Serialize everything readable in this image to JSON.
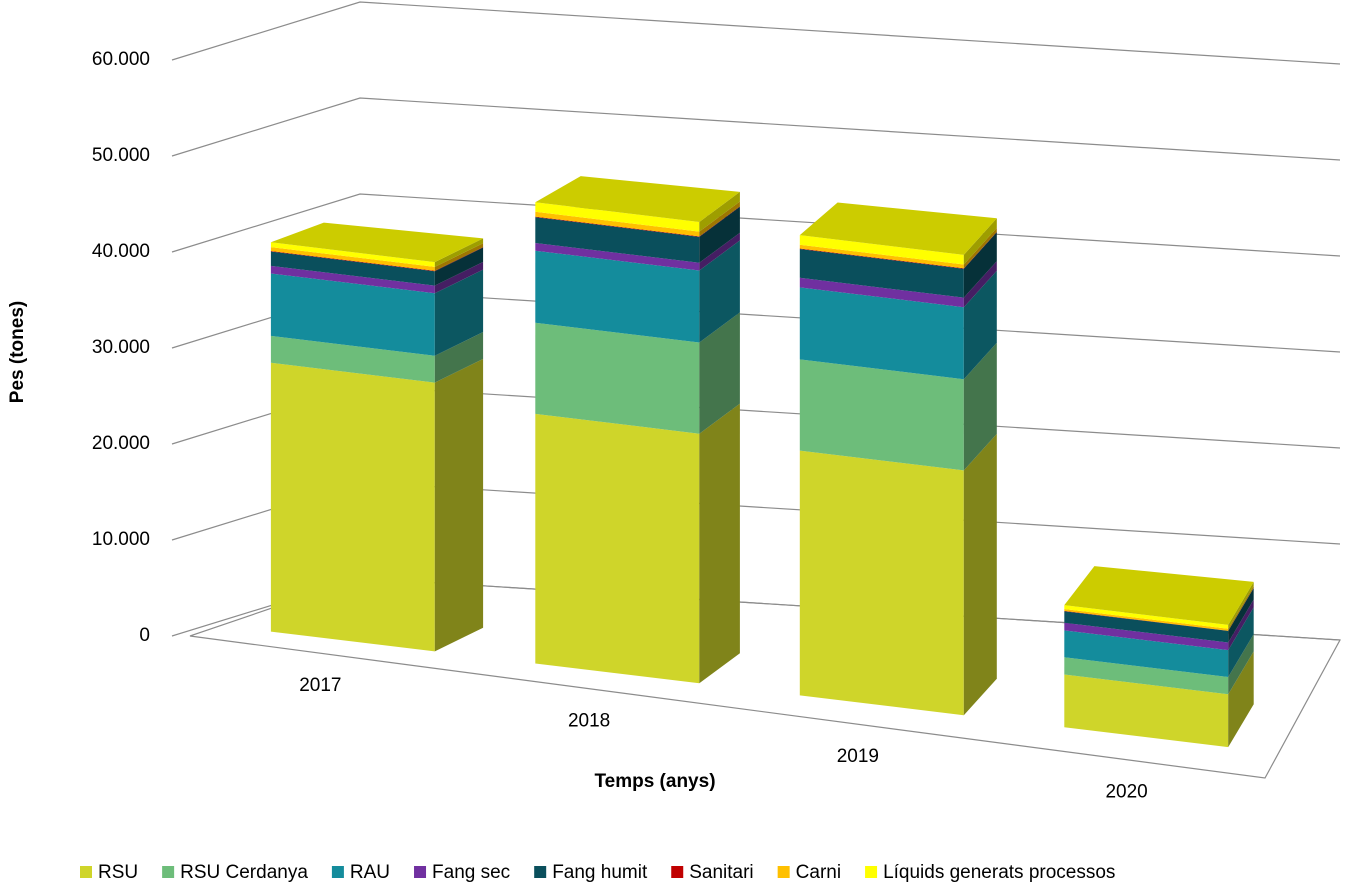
{
  "chart_data": {
    "type": "bar3d_stacked",
    "x_label": "Temps (anys)",
    "y_label": "Pes (tones)",
    "categories": [
      "2017",
      "2018",
      "2019",
      "2020"
    ],
    "series": [
      {
        "name": "RSU",
        "color": "#cfd52a",
        "values": [
          28000,
          26000,
          25500,
          5500
        ]
      },
      {
        "name": "RSU Cerdanya",
        "color": "#6dbd7a",
        "values": [
          2800,
          9500,
          9500,
          1800
        ]
      },
      {
        "name": "RAU",
        "color": "#148c9c",
        "values": [
          6500,
          7500,
          7500,
          2800
        ]
      },
      {
        "name": "Fang sec",
        "color": "#7030a0",
        "values": [
          800,
          800,
          1000,
          800
        ]
      },
      {
        "name": "Fang humit",
        "color": "#0a4f5c",
        "values": [
          1500,
          2700,
          3000,
          1200
        ]
      },
      {
        "name": "Sanitari",
        "color": "#c00000",
        "values": [
          50,
          50,
          50,
          30
        ]
      },
      {
        "name": "Carni",
        "color": "#ffc000",
        "values": [
          400,
          500,
          400,
          200
        ]
      },
      {
        "name": "Líquids generats processos",
        "color": "#ffff00",
        "values": [
          500,
          1000,
          1000,
          400
        ]
      }
    ],
    "ylim": [
      0,
      60000
    ],
    "yticks": [
      0,
      {
        "value": 10000,
        "label": "10.000"
      },
      {
        "value": 20000,
        "label": "20.000"
      },
      {
        "value": 30000,
        "label": "30.000"
      },
      {
        "value": 40000,
        "label": "40.000"
      },
      {
        "value": 50000,
        "label": "50.000"
      },
      {
        "value": 60000,
        "label": "60.000"
      }
    ],
    "grid": true
  }
}
